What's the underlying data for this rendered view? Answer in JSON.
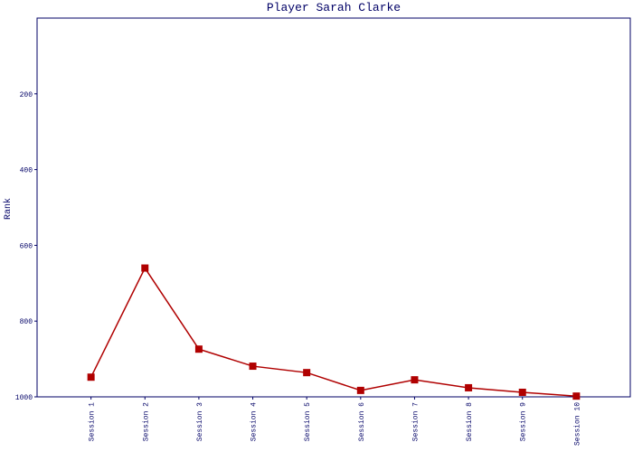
{
  "chart_data": {
    "type": "line",
    "title": "Player Sarah Clarke",
    "y_label": "Rank",
    "categories": [
      "Session 1",
      "Session 2",
      "Session 3",
      "Session 4",
      "Session 5",
      "Session 6",
      "Session 7",
      "Session 8",
      "Session 9",
      "Session 10"
    ],
    "series": [
      {
        "name": "Rank",
        "color": "#b00000",
        "values": [
          948,
          660,
          874,
          919,
          936,
          983,
          955,
          976,
          988,
          998
        ]
      }
    ],
    "ylim": [
      1000,
      0
    ],
    "yticks": [
      200,
      400,
      600,
      800,
      1000
    ],
    "grid": false
  }
}
